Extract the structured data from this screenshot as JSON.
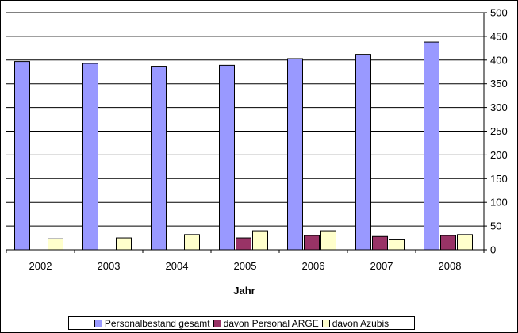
{
  "chart_data": {
    "type": "bar",
    "title": "",
    "xlabel": "Jahr",
    "ylabel": "",
    "categories": [
      "2002",
      "2003",
      "2004",
      "2005",
      "2006",
      "2007",
      "2008"
    ],
    "series": [
      {
        "name": "Personalbestand gesamt",
        "color": "#9999ff",
        "values": [
          397,
          393,
          387,
          389,
          403,
          412,
          438
        ]
      },
      {
        "name": "davon Personal ARGE",
        "color": "#993366",
        "values": [
          0,
          0,
          0,
          25,
          30,
          28,
          30
        ]
      },
      {
        "name": "davon Azubis",
        "color": "#ffffcc",
        "values": [
          23,
          25,
          32,
          40,
          40,
          21,
          32
        ]
      }
    ],
    "ylim": [
      0,
      500
    ],
    "yticks": [
      0,
      50,
      100,
      150,
      200,
      250,
      300,
      350,
      400,
      450,
      500
    ],
    "grid": true,
    "legend_position": "bottom"
  }
}
